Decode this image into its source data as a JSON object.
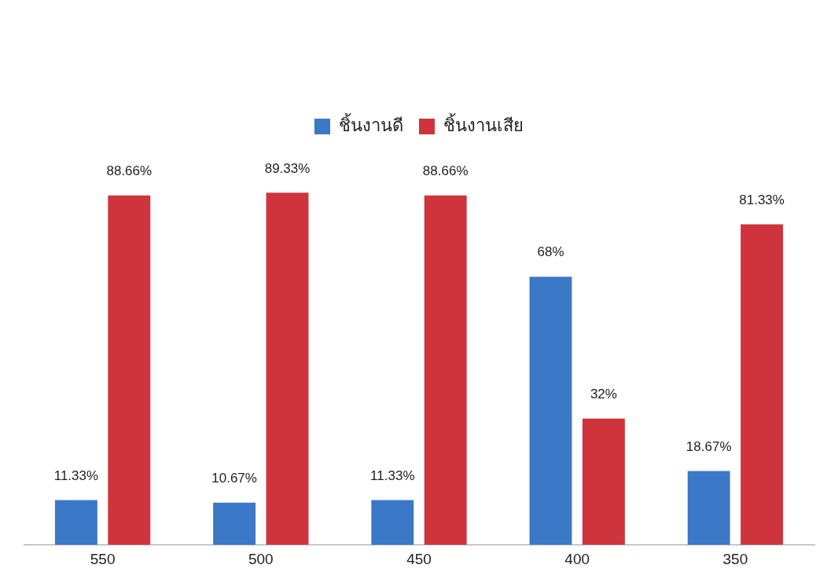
{
  "chart_data": {
    "type": "bar",
    "categories": [
      "550",
      "500",
      "450",
      "400",
      "350"
    ],
    "legend": "top",
    "grid": false,
    "series": [
      {
        "name": "ชิ้นงานดี",
        "color": "#3b78c6",
        "values": [
          11.33,
          10.67,
          11.33,
          68,
          18.67
        ],
        "value_labels": [
          "11.33%",
          "10.67%",
          "11.33%",
          "68%",
          "18.67%"
        ]
      },
      {
        "name": "ชิ้นงานเสีย",
        "color": "#cf343c",
        "values": [
          88.66,
          89.33,
          88.66,
          32,
          81.33
        ],
        "value_labels": [
          "88.66%",
          "89.33%",
          "88.66%",
          "32%",
          "81.33%"
        ]
      }
    ]
  }
}
